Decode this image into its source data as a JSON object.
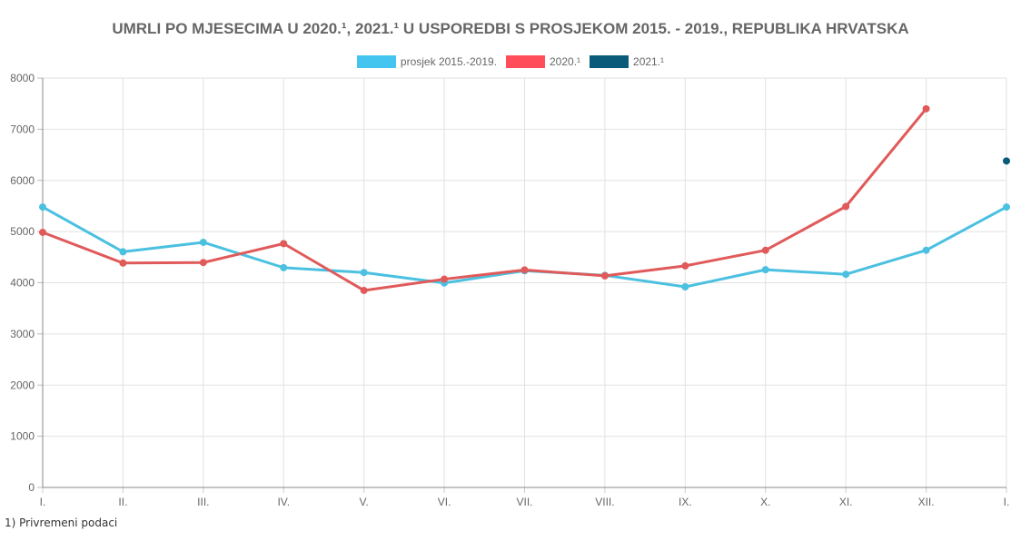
{
  "chart_data": {
    "type": "line",
    "title": "UMRLI PO MJESECIMA U 2020.¹, 2021.¹ U USPOREDBI S PROSJEKOM 2015. - 2019., REPUBLIKA HRVATSKA",
    "xlabel": "",
    "ylabel": "",
    "categories": [
      "I.",
      "II.",
      "III.",
      "IV.",
      "V.",
      "VI.",
      "VII.",
      "VIII.",
      "IX.",
      "X.",
      "XI.",
      "XII.",
      "I."
    ],
    "ylim": [
      0,
      8000
    ],
    "yticks": [
      0,
      1000,
      2000,
      3000,
      4000,
      5000,
      6000,
      7000,
      8000
    ],
    "grid": true,
    "legend_position": "top-center",
    "series": [
      {
        "name": "prosjek 2015.-2019.",
        "color": "#4bc0e0",
        "values": [
          5480,
          4605,
          4790,
          4295,
          4200,
          3995,
          4235,
          4145,
          3920,
          4255,
          4165,
          4635,
          5480
        ]
      },
      {
        "name": "2020.¹",
        "color": "#e05a5a",
        "legend_color": "#ff4d5a",
        "values": [
          4985,
          4385,
          4395,
          4765,
          3850,
          4070,
          4250,
          4135,
          4330,
          4635,
          5490,
          7400,
          null
        ]
      },
      {
        "name": "2021.¹",
        "color": "#0a5b7a",
        "values": [
          null,
          null,
          null,
          null,
          null,
          null,
          null,
          null,
          null,
          null,
          null,
          null,
          6380
        ]
      }
    ]
  },
  "footnote": "1) Privremeni podaci"
}
